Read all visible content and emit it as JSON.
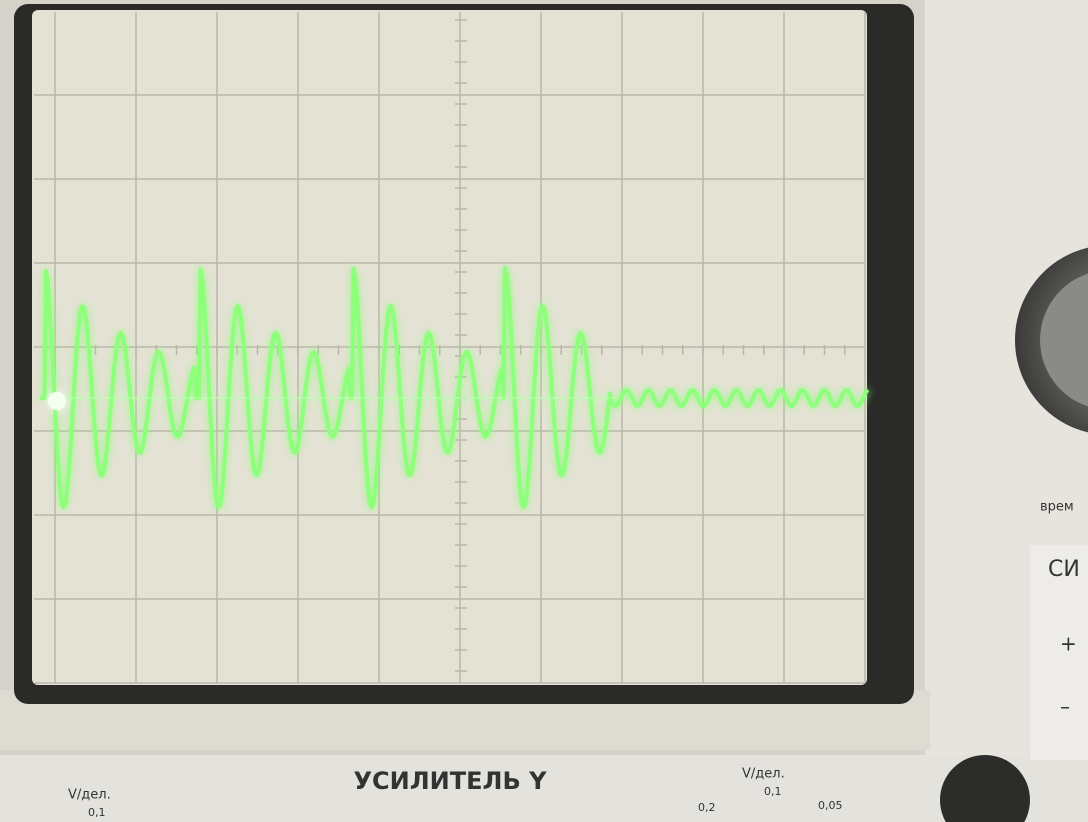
{
  "panel": {
    "amplifier_title": "УСИЛИТЕЛЬ Y",
    "left_label": "V/дел.",
    "left_value": "0,1",
    "right_label": "V/дел.",
    "right_values": [
      "0,2",
      "0,1",
      "0,05"
    ],
    "time_label": "врем",
    "side_label": "СИ",
    "plus": "+",
    "minus": "–"
  }
}
